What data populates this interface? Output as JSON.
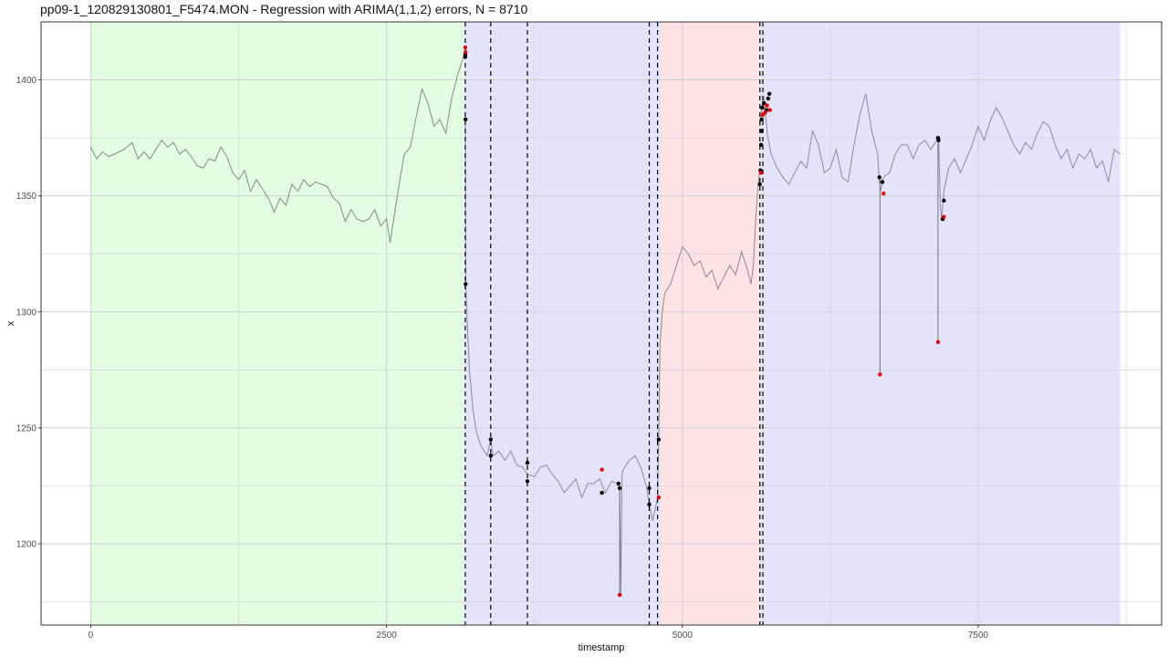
{
  "chart_data": {
    "type": "line",
    "title": "pp09-1_120829130801_F5474.MON - Regression with ARIMA(1,1,2) errors, N = 8710",
    "xlabel": "timestamp",
    "ylabel": "x",
    "xlim": [
      -420,
      9050
    ],
    "ylim": [
      1165,
      1425
    ],
    "x_ticks": [
      0,
      2500,
      5000,
      7500
    ],
    "x_tick_labels": [
      "0",
      "2500",
      "5000",
      "7500"
    ],
    "y_ticks": [
      1200,
      1250,
      1300,
      1350,
      1400
    ],
    "y_tick_labels": [
      "1200",
      "1250",
      "1300",
      "1350",
      "1400"
    ],
    "grid": true,
    "background_regions": [
      {
        "x0": 0,
        "x1": 3160,
        "color": "#e2fde2"
      },
      {
        "x0": 3160,
        "x1": 4820,
        "color": "#e3e3fa"
      },
      {
        "x0": 4820,
        "x1": 5655,
        "color": "#fde3e3"
      },
      {
        "x0": 5655,
        "x1": 8700,
        "color": "#e3e3fa"
      }
    ],
    "changepoints": [
      3165,
      3380,
      3690,
      4720,
      4790,
      5655,
      5680
    ],
    "series": [
      {
        "color": "#888888",
        "x": [
          0,
          50,
          100,
          150,
          200,
          280,
          350,
          400,
          450,
          500,
          550,
          600,
          650,
          700,
          750,
          800,
          850,
          900,
          950,
          1000,
          1050,
          1100,
          1150,
          1200,
          1250,
          1300,
          1350,
          1400,
          1450,
          1500,
          1550,
          1600,
          1650,
          1700,
          1750,
          1800,
          1850,
          1900,
          1950,
          2000,
          2050,
          2100,
          2150,
          2200,
          2250,
          2300,
          2350,
          2400,
          2450,
          2500,
          2530,
          2570,
          2600,
          2650,
          2700,
          2750,
          2800,
          2850,
          2900,
          2950,
          3000,
          3050,
          3100,
          3150,
          3165
        ],
        "y": [
          1371,
          1366,
          1369,
          1367,
          1368,
          1370,
          1373,
          1366,
          1369,
          1366,
          1370,
          1374,
          1371,
          1373,
          1368,
          1370,
          1367,
          1363,
          1362,
          1366,
          1365,
          1371,
          1367,
          1360,
          1357,
          1361,
          1352,
          1357,
          1353,
          1349,
          1343,
          1349,
          1346,
          1355,
          1352,
          1357,
          1354,
          1356,
          1355,
          1354,
          1349,
          1347,
          1339,
          1344,
          1340,
          1339,
          1340,
          1344,
          1337,
          1340,
          1330,
          1343,
          1353,
          1368,
          1371,
          1384,
          1396,
          1390,
          1380,
          1383,
          1377,
          1392,
          1402,
          1410,
          1412
        ]
      },
      {
        "color": "#8a8aa6",
        "x": [
          3165,
          3170,
          3180,
          3200,
          3230,
          3260,
          3300,
          3350,
          3380,
          3400,
          3450,
          3500,
          3550,
          3600,
          3650,
          3690,
          3750,
          3800,
          3850,
          3900,
          3950,
          4000,
          4050,
          4100,
          4150,
          4200,
          4250,
          4300,
          4350,
          4400,
          4450,
          4470,
          4480,
          4490,
          4500,
          4550,
          4600,
          4650,
          4700,
          4720,
          4750,
          4790
        ],
        "y": [
          1383,
          1312,
          1298,
          1275,
          1258,
          1248,
          1242,
          1238,
          1245,
          1238,
          1240,
          1236,
          1240,
          1234,
          1233,
          1230,
          1229,
          1233,
          1234,
          1230,
          1227,
          1222,
          1225,
          1228,
          1220,
          1226,
          1226,
          1228,
          1222,
          1227,
          1226,
          1224,
          1178,
          1230,
          1232,
          1236,
          1238,
          1233,
          1224,
          1217,
          1210,
          1220
        ]
      },
      {
        "color": "#8a8a8a",
        "x": [
          4790,
          4800,
          4810,
          4830,
          4850,
          4900,
          4950,
          5000,
          5050,
          5100,
          5150,
          5200,
          5250,
          5300,
          5350,
          5400,
          5450,
          5500,
          5550,
          5580,
          5600,
          5620,
          5640,
          5655
        ],
        "y": [
          1220,
          1245,
          1285,
          1300,
          1308,
          1312,
          1320,
          1328,
          1325,
          1320,
          1322,
          1315,
          1318,
          1310,
          1315,
          1320,
          1316,
          1326,
          1318,
          1312,
          1320,
          1340,
          1355,
          1362
        ]
      },
      {
        "color": "#8a8aa6",
        "x": [
          5655,
          5665,
          5675,
          5685,
          5700,
          5720,
          5750,
          5800,
          5850,
          5900,
          5950,
          6000,
          6050,
          6100,
          6150,
          6200,
          6250,
          6300,
          6350,
          6400,
          6450,
          6500,
          6550,
          6600,
          6650,
          6665,
          6675,
          6700,
          6750,
          6800,
          6850,
          6900,
          6950,
          7000,
          7050,
          7100,
          7150,
          7165,
          7180,
          7190,
          7210,
          7250,
          7300,
          7350,
          7400,
          7450,
          7500,
          7550,
          7600,
          7650,
          7700,
          7750,
          7800,
          7850,
          7900,
          7950,
          8000,
          8050,
          8100,
          8150,
          8200,
          8250,
          8300,
          8350,
          8400,
          8450,
          8500,
          8550,
          8600,
          8650,
          8700
        ],
        "y": [
          1380,
          1385,
          1390,
          1393,
          1386,
          1376,
          1368,
          1362,
          1358,
          1355,
          1360,
          1365,
          1362,
          1378,
          1372,
          1360,
          1362,
          1370,
          1358,
          1356,
          1372,
          1385,
          1394,
          1378,
          1368,
          1356,
          1352,
          1358,
          1360,
          1368,
          1372,
          1372,
          1366,
          1372,
          1374,
          1370,
          1374,
          1375,
          1346,
          1340,
          1352,
          1362,
          1366,
          1360,
          1366,
          1372,
          1380,
          1374,
          1382,
          1388,
          1384,
          1378,
          1372,
          1368,
          1373,
          1370,
          1377,
          1382,
          1380,
          1372,
          1366,
          1370,
          1362,
          1368,
          1366,
          1370,
          1362,
          1365,
          1356,
          1370,
          1368
        ]
      }
    ],
    "highlight_points": [
      {
        "x": 3165,
        "y": 1411,
        "color": "black"
      },
      {
        "x": 3165,
        "y": 1410,
        "color": "black"
      },
      {
        "x": 3168,
        "y": 1383,
        "color": "black"
      },
      {
        "x": 3168,
        "y": 1312,
        "color": "black"
      },
      {
        "x": 3380,
        "y": 1245,
        "color": "black"
      },
      {
        "x": 3380,
        "y": 1238,
        "color": "black"
      },
      {
        "x": 3690,
        "y": 1235,
        "color": "black"
      },
      {
        "x": 3690,
        "y": 1227,
        "color": "black"
      },
      {
        "x": 4320,
        "y": 1222,
        "color": "black"
      },
      {
        "x": 4460,
        "y": 1226,
        "color": "black"
      },
      {
        "x": 4470,
        "y": 1224,
        "color": "black"
      },
      {
        "x": 4720,
        "y": 1224,
        "color": "black"
      },
      {
        "x": 4720,
        "y": 1217,
        "color": "black"
      },
      {
        "x": 4800,
        "y": 1245,
        "color": "black"
      },
      {
        "x": 5655,
        "y": 1355,
        "color": "black"
      },
      {
        "x": 5660,
        "y": 1361,
        "color": "black"
      },
      {
        "x": 5665,
        "y": 1372,
        "color": "black"
      },
      {
        "x": 5670,
        "y": 1378,
        "color": "black"
      },
      {
        "x": 5670,
        "y": 1383,
        "color": "black"
      },
      {
        "x": 5675,
        "y": 1388,
        "color": "black"
      },
      {
        "x": 5690,
        "y": 1390,
        "color": "black"
      },
      {
        "x": 5710,
        "y": 1387,
        "color": "black"
      },
      {
        "x": 5725,
        "y": 1392,
        "color": "black"
      },
      {
        "x": 5735,
        "y": 1394,
        "color": "black"
      },
      {
        "x": 6665,
        "y": 1358,
        "color": "black"
      },
      {
        "x": 6690,
        "y": 1356,
        "color": "black"
      },
      {
        "x": 7160,
        "y": 1375,
        "color": "black"
      },
      {
        "x": 7165,
        "y": 1374,
        "color": "black"
      },
      {
        "x": 7200,
        "y": 1340,
        "color": "black"
      },
      {
        "x": 7210,
        "y": 1348,
        "color": "black"
      },
      {
        "x": 3165,
        "y": 1414,
        "color": "red"
      },
      {
        "x": 3168,
        "y": 1412,
        "color": "red"
      },
      {
        "x": 4320,
        "y": 1232,
        "color": "red"
      },
      {
        "x": 4470,
        "y": 1178,
        "color": "red"
      },
      {
        "x": 4800,
        "y": 1220,
        "color": "red"
      },
      {
        "x": 5665,
        "y": 1360,
        "color": "red"
      },
      {
        "x": 5680,
        "y": 1385,
        "color": "red"
      },
      {
        "x": 5700,
        "y": 1386,
        "color": "red"
      },
      {
        "x": 5715,
        "y": 1389,
        "color": "red"
      },
      {
        "x": 5740,
        "y": 1387,
        "color": "red"
      },
      {
        "x": 6670,
        "y": 1273,
        "color": "red"
      },
      {
        "x": 6700,
        "y": 1351,
        "color": "red"
      },
      {
        "x": 7160,
        "y": 1287,
        "color": "red"
      },
      {
        "x": 7210,
        "y": 1341,
        "color": "red"
      }
    ],
    "outlier_spikes": [
      {
        "x": 4470,
        "y_from": 1225,
        "y_to": 1178
      },
      {
        "x": 6670,
        "y_from": 1358,
        "y_to": 1273
      },
      {
        "x": 7160,
        "y_from": 1375,
        "y_to": 1287
      }
    ]
  }
}
